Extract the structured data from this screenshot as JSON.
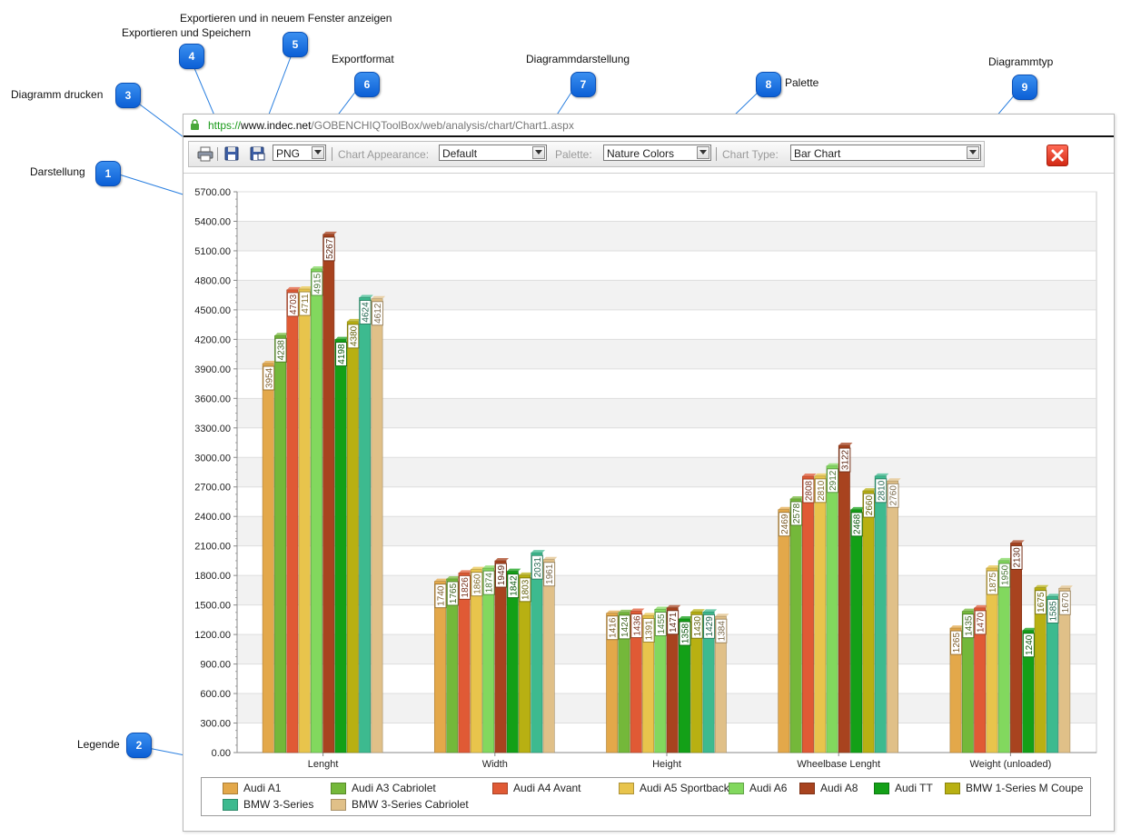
{
  "callouts": [
    {
      "n": "1",
      "label": "Darstellung"
    },
    {
      "n": "2",
      "label": "Legende"
    },
    {
      "n": "3",
      "label": "Diagramm drucken"
    },
    {
      "n": "4",
      "label": "Exportieren und Speichern"
    },
    {
      "n": "5",
      "label": "Exportieren und in neuem Fenster anzeigen"
    },
    {
      "n": "6",
      "label": "Exportformat"
    },
    {
      "n": "7",
      "label": "Diagrammdarstellung"
    },
    {
      "n": "8",
      "label": "Palette"
    },
    {
      "n": "9",
      "label": "Diagrammtyp"
    }
  ],
  "browser": {
    "url_scheme": "https://",
    "url_host": "www.indec.net",
    "url_path": "/GOBENCHIQToolBox/web/analysis/chart/Chart1.aspx"
  },
  "toolbar": {
    "print_icon": "printer-icon",
    "save_icon": "floppy-disk-icon",
    "export_new_window_icon": "floppy-disk-window-icon",
    "export_format": "PNG",
    "appearance_label": "Chart Appearance:",
    "appearance_value": "Default",
    "palette_label": "Palette:",
    "palette_value": "Nature Colors",
    "chart_type_label": "Chart Type:",
    "chart_type_value": "Bar Chart",
    "close_icon": "close-x-icon"
  },
  "colors": {
    "Audi A1": "#e3a84a",
    "Audi A3 Cabriolet": "#74b83a",
    "Audi A4 Avant": "#e05a35",
    "Audi A5 Sportback": "#e8c44c",
    "Audi A6": "#82d85e",
    "Audi A8": "#a8431f",
    "Audi TT": "#13a017",
    "BMW 1-Series M Coupe": "#b8b012",
    "BMW 3-Series": "#3dba8f",
    "BMW 3-Series Cabriolet": "#e0c088"
  },
  "chart_data": {
    "type": "bar",
    "categories": [
      "Lenght",
      "Width",
      "Height",
      "Wheelbase Lenght",
      "Weight (unloaded)"
    ],
    "ylim": [
      0,
      5700
    ],
    "yticks": [
      "0.00",
      "300.00",
      "600.00",
      "900.00",
      "1200.00",
      "1500.00",
      "1800.00",
      "2100.00",
      "2400.00",
      "2700.00",
      "3000.00",
      "3300.00",
      "3600.00",
      "3900.00",
      "4200.00",
      "4500.00",
      "4800.00",
      "5100.00",
      "5400.00",
      "5700.00"
    ],
    "grid": true,
    "legend_position": "bottom",
    "series": [
      {
        "name": "Audi A1",
        "values": [
          3954,
          1740,
          1416,
          2469,
          1265
        ]
      },
      {
        "name": "Audi A3 Cabriolet",
        "values": [
          4238,
          1765,
          1424,
          2578,
          1435
        ]
      },
      {
        "name": "Audi A4 Avant",
        "values": [
          4703,
          1826,
          1436,
          2808,
          1470
        ]
      },
      {
        "name": "Audi A5 Sportback",
        "values": [
          4711,
          1860,
          1391,
          2810,
          1875
        ]
      },
      {
        "name": "Audi A6",
        "values": [
          4915,
          1874,
          1455,
          2912,
          1950
        ]
      },
      {
        "name": "Audi A8",
        "values": [
          5267,
          1949,
          1471,
          3122,
          2130
        ]
      },
      {
        "name": "Audi TT",
        "values": [
          4198,
          1842,
          1358,
          2468,
          1240
        ]
      },
      {
        "name": "BMW 1-Series M Coupe",
        "values": [
          4380,
          1803,
          1430,
          2660,
          1675
        ]
      },
      {
        "name": "BMW 3-Series",
        "values": [
          4624,
          2031,
          1429,
          2810,
          1585
        ]
      },
      {
        "name": "BMW 3-Series Cabriolet",
        "values": [
          4612,
          1961,
          1384,
          2760,
          1670
        ]
      }
    ]
  }
}
